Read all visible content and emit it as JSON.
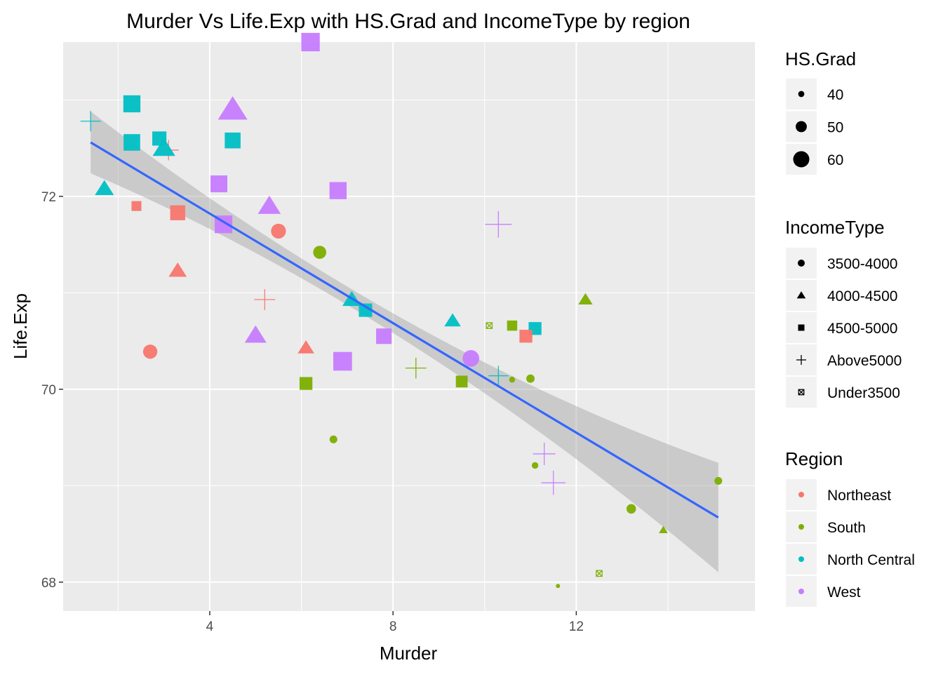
{
  "chart_data": {
    "type": "scatter",
    "title": "Murder Vs Life.Exp with HS.Grad and IncomeType by region",
    "xlabel": "Murder",
    "ylabel": "Life.Exp",
    "xlim": [
      0.8,
      15.9
    ],
    "ylim": [
      67.7,
      73.6
    ],
    "xticks": [
      4,
      8,
      12
    ],
    "yticks": [
      68,
      70,
      72
    ],
    "x_tick_labels": [
      "4",
      "8",
      "12"
    ],
    "y_tick_labels": [
      "68",
      "70",
      "72"
    ],
    "grid": true,
    "legend_placement": "right",
    "legends": {
      "size": {
        "title": "HS.Grad",
        "labels": [
          "40",
          "50",
          "60"
        ],
        "values": [
          40,
          50,
          60
        ]
      },
      "shape": {
        "title": "IncomeType",
        "labels": [
          "3500-4000",
          "4000-4500",
          "4500-5000",
          "Above5000",
          "Under3500"
        ]
      },
      "color": {
        "title": "Region",
        "labels": [
          "Northeast",
          "South",
          "North Central",
          "West"
        ]
      }
    },
    "colors": {
      "Northeast": "#F8766D",
      "South": "#7CAE00",
      "North Central": "#00BFC4",
      "West": "#C77CFF"
    },
    "trend_line": {
      "method": "lm",
      "x": [
        1.4,
        15.1
      ],
      "y": [
        72.56,
        68.67
      ],
      "color": "#3366FF",
      "band": "#cccccc"
    },
    "points": [
      {
        "x": 6.2,
        "y": 73.6,
        "region": "West",
        "income": "4500-5000",
        "hs_grad": 62.5
      },
      {
        "x": 2.3,
        "y": 72.96,
        "region": "North Central",
        "income": "4500-5000",
        "hs_grad": 59.9
      },
      {
        "x": 4.5,
        "y": 72.9,
        "region": "West",
        "income": "4000-4500",
        "hs_grad": 67.3
      },
      {
        "x": 1.4,
        "y": 72.78,
        "region": "North Central",
        "income": "Above5000",
        "hs_grad": 52.3
      },
      {
        "x": 2.3,
        "y": 72.56,
        "region": "North Central",
        "income": "4500-5000",
        "hs_grad": 59.0
      },
      {
        "x": 2.9,
        "y": 72.6,
        "region": "North Central",
        "income": "4500-5000",
        "hs_grad": 54.5
      },
      {
        "x": 4.5,
        "y": 72.58,
        "region": "North Central",
        "income": "4500-5000",
        "hs_grad": 57.6
      },
      {
        "x": 3.1,
        "y": 72.48,
        "region": "Northeast",
        "income": "Above5000",
        "hs_grad": 52.5
      },
      {
        "x": 3.0,
        "y": 72.5,
        "region": "North Central",
        "income": "4000-4500",
        "hs_grad": 58.2
      },
      {
        "x": 4.2,
        "y": 72.13,
        "region": "West",
        "income": "4500-5000",
        "hs_grad": 59.5
      },
      {
        "x": 1.7,
        "y": 72.08,
        "region": "North Central",
        "income": "4000-4500",
        "hs_grad": 53.3
      },
      {
        "x": 6.8,
        "y": 72.06,
        "region": "West",
        "income": "4500-5000",
        "hs_grad": 60.0
      },
      {
        "x": 2.4,
        "y": 71.9,
        "region": "Northeast",
        "income": "4500-5000",
        "hs_grad": 46.4
      },
      {
        "x": 5.3,
        "y": 71.9,
        "region": "West",
        "income": "4000-4500",
        "hs_grad": 58.5
      },
      {
        "x": 3.3,
        "y": 71.83,
        "region": "Northeast",
        "income": "4500-5000",
        "hs_grad": 56.0
      },
      {
        "x": 4.3,
        "y": 71.71,
        "region": "West",
        "income": "4500-5000",
        "hs_grad": 61.0
      },
      {
        "x": 10.3,
        "y": 71.71,
        "region": "West",
        "income": "Above5000",
        "hs_grad": 60.0
      },
      {
        "x": 5.5,
        "y": 71.64,
        "region": "Northeast",
        "income": "3500-4000",
        "hs_grad": 53.0
      },
      {
        "x": 6.4,
        "y": 71.42,
        "region": "South",
        "income": "3500-4000",
        "hs_grad": 50.0
      },
      {
        "x": 3.3,
        "y": 71.23,
        "region": "Northeast",
        "income": "4000-4500",
        "hs_grad": 52.0
      },
      {
        "x": 5.2,
        "y": 70.93,
        "region": "Northeast",
        "income": "Above5000",
        "hs_grad": 53.0
      },
      {
        "x": 7.1,
        "y": 70.93,
        "region": "North Central",
        "income": "4000-4500",
        "hs_grad": 53.0
      },
      {
        "x": 12.2,
        "y": 70.93,
        "region": "South",
        "income": "4000-4500",
        "hs_grad": 47.0
      },
      {
        "x": 7.4,
        "y": 70.82,
        "region": "North Central",
        "income": "4500-5000",
        "hs_grad": 53.0
      },
      {
        "x": 9.3,
        "y": 70.71,
        "region": "North Central",
        "income": "4000-4500",
        "hs_grad": 50.0
      },
      {
        "x": 10.1,
        "y": 70.66,
        "region": "South",
        "income": "Under3500",
        "hs_grad": 41.0
      },
      {
        "x": 10.6,
        "y": 70.66,
        "region": "South",
        "income": "4500-5000",
        "hs_grad": 47.0
      },
      {
        "x": 11.1,
        "y": 70.63,
        "region": "North Central",
        "income": "4500-5000",
        "hs_grad": 52.0
      },
      {
        "x": 5.0,
        "y": 70.56,
        "region": "West",
        "income": "4000-4500",
        "hs_grad": 57.0
      },
      {
        "x": 7.8,
        "y": 70.55,
        "region": "West",
        "income": "4500-5000",
        "hs_grad": 57.0
      },
      {
        "x": 10.9,
        "y": 70.55,
        "region": "Northeast",
        "income": "4500-5000",
        "hs_grad": 52.0
      },
      {
        "x": 6.1,
        "y": 70.43,
        "region": "Northeast",
        "income": "4000-4500",
        "hs_grad": 50.0
      },
      {
        "x": 2.7,
        "y": 70.39,
        "region": "Northeast",
        "income": "3500-4000",
        "hs_grad": 52.0
      },
      {
        "x": 9.7,
        "y": 70.32,
        "region": "West",
        "income": "3500-4000",
        "hs_grad": 56.0
      },
      {
        "x": 6.9,
        "y": 70.29,
        "region": "West",
        "income": "4500-5000",
        "hs_grad": 63.0
      },
      {
        "x": 8.5,
        "y": 70.22,
        "region": "South",
        "income": "Above5000",
        "hs_grad": 53.0
      },
      {
        "x": 10.3,
        "y": 70.14,
        "region": "North Central",
        "income": "Above5000",
        "hs_grad": 52.0
      },
      {
        "x": 11.0,
        "y": 70.11,
        "region": "South",
        "income": "3500-4000",
        "hs_grad": 42.0
      },
      {
        "x": 10.6,
        "y": 70.1,
        "region": "South",
        "income": "3500-4000",
        "hs_grad": 38.0
      },
      {
        "x": 6.1,
        "y": 70.06,
        "region": "South",
        "income": "4500-5000",
        "hs_grad": 52.0
      },
      {
        "x": 9.5,
        "y": 70.08,
        "region": "South",
        "income": "4500-5000",
        "hs_grad": 50.0
      },
      {
        "x": 6.7,
        "y": 69.48,
        "region": "South",
        "income": "3500-4000",
        "hs_grad": 41.0
      },
      {
        "x": 11.3,
        "y": 69.33,
        "region": "West",
        "income": "Above5000",
        "hs_grad": 55.0
      },
      {
        "x": 11.1,
        "y": 69.21,
        "region": "South",
        "income": "3500-4000",
        "hs_grad": 39.0
      },
      {
        "x": 15.1,
        "y": 69.05,
        "region": "South",
        "income": "3500-4000",
        "hs_grad": 41.0
      },
      {
        "x": 11.5,
        "y": 69.03,
        "region": "West",
        "income": "Above5000",
        "hs_grad": 57.0
      },
      {
        "x": 13.2,
        "y": 68.76,
        "region": "South",
        "income": "3500-4000",
        "hs_grad": 44.0
      },
      {
        "x": 13.9,
        "y": 68.54,
        "region": "South",
        "income": "4000-4500",
        "hs_grad": 40.0
      },
      {
        "x": 12.5,
        "y": 68.09,
        "region": "South",
        "income": "Under3500",
        "hs_grad": 41.0
      },
      {
        "x": 11.6,
        "y": 67.96,
        "region": "South",
        "income": "3500-4000",
        "hs_grad": 35.0
      }
    ]
  }
}
